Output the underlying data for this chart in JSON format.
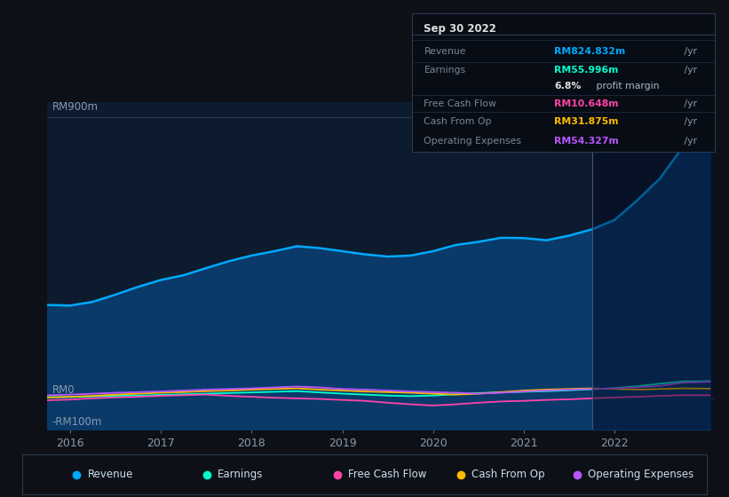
{
  "bg_color": "#0d1117",
  "plot_bg_color": "#0d1b2e",
  "ylim": [
    -100,
    950
  ],
  "xlim": [
    2015.75,
    2023.1
  ],
  "ytick_labels": [
    "RM900m",
    "RM0",
    "-RM100m"
  ],
  "ytick_vals": [
    900,
    0,
    -100
  ],
  "xtick_vals": [
    2016,
    2017,
    2018,
    2019,
    2020,
    2021,
    2022
  ],
  "highlight_x_start": 2021.75,
  "tooltip_date": "Sep 30 2022",
  "tooltip_rows": [
    {
      "label": "Revenue",
      "value": "RM824.832m",
      "suffix": " /yr",
      "color": "#00aaff",
      "bold": true
    },
    {
      "label": "Earnings",
      "value": "RM55.996m",
      "suffix": " /yr",
      "color": "#00ffcc",
      "bold": true
    },
    {
      "label": "",
      "value": "6.8%",
      "suffix": " profit margin",
      "color": "#dddddd",
      "bold": true
    },
    {
      "label": "Free Cash Flow",
      "value": "RM10.648m",
      "suffix": " /yr",
      "color": "#ff44aa",
      "bold": true
    },
    {
      "label": "Cash From Op",
      "value": "RM31.875m",
      "suffix": " /yr",
      "color": "#ffbb00",
      "bold": true
    },
    {
      "label": "Operating Expenses",
      "value": "RM54.327m",
      "suffix": " /yr",
      "color": "#bb55ff",
      "bold": true
    }
  ],
  "legend_items": [
    {
      "label": "Revenue",
      "color": "#00aaff"
    },
    {
      "label": "Earnings",
      "color": "#00ffcc"
    },
    {
      "label": "Free Cash Flow",
      "color": "#ff44aa"
    },
    {
      "label": "Cash From Op",
      "color": "#ffbb00"
    },
    {
      "label": "Operating Expenses",
      "color": "#bb55ff"
    }
  ],
  "revenue_x": [
    2015.75,
    2016.0,
    2016.25,
    2016.5,
    2016.75,
    2017.0,
    2017.25,
    2017.5,
    2017.75,
    2018.0,
    2018.25,
    2018.5,
    2018.75,
    2019.0,
    2019.25,
    2019.5,
    2019.75,
    2020.0,
    2020.25,
    2020.5,
    2020.75,
    2021.0,
    2021.25,
    2021.5,
    2021.75,
    2022.0,
    2022.25,
    2022.5,
    2022.75,
    2023.05
  ],
  "revenue_y": [
    300,
    298,
    310,
    333,
    358,
    380,
    395,
    418,
    440,
    458,
    472,
    488,
    482,
    472,
    462,
    455,
    458,
    472,
    492,
    502,
    515,
    514,
    507,
    522,
    542,
    572,
    635,
    705,
    805,
    830
  ],
  "earnings_x": [
    2015.75,
    2016.0,
    2016.25,
    2016.5,
    2016.75,
    2017.0,
    2017.25,
    2017.5,
    2017.75,
    2018.0,
    2018.25,
    2018.5,
    2018.75,
    2019.0,
    2019.25,
    2019.5,
    2019.75,
    2020.0,
    2020.25,
    2020.5,
    2020.75,
    2021.0,
    2021.25,
    2021.5,
    2021.75,
    2022.0,
    2022.25,
    2022.5,
    2022.75,
    2023.05
  ],
  "earnings_y": [
    5,
    5,
    7,
    9,
    10,
    12,
    14,
    16,
    18,
    20,
    22,
    24,
    20,
    16,
    13,
    10,
    8,
    10,
    14,
    18,
    20,
    22,
    24,
    27,
    30,
    34,
    40,
    48,
    55,
    56
  ],
  "fcf_x": [
    2015.75,
    2016.0,
    2016.25,
    2016.5,
    2016.75,
    2017.0,
    2017.25,
    2017.5,
    2017.75,
    2018.0,
    2018.25,
    2018.5,
    2018.75,
    2019.0,
    2019.25,
    2019.5,
    2019.75,
    2020.0,
    2020.25,
    2020.5,
    2020.75,
    2021.0,
    2021.25,
    2021.5,
    2021.75,
    2022.0,
    2022.25,
    2022.5,
    2022.75,
    2023.05
  ],
  "fcf_y": [
    -5,
    -3,
    1,
    4,
    6,
    9,
    11,
    13,
    9,
    6,
    3,
    1,
    -1,
    -4,
    -7,
    -13,
    -18,
    -22,
    -18,
    -13,
    -9,
    -7,
    -4,
    -2,
    1,
    4,
    6,
    9,
    11,
    11
  ],
  "cfo_x": [
    2015.75,
    2016.0,
    2016.25,
    2016.5,
    2016.75,
    2017.0,
    2017.25,
    2017.5,
    2017.75,
    2018.0,
    2018.25,
    2018.5,
    2018.75,
    2019.0,
    2019.25,
    2019.5,
    2019.75,
    2020.0,
    2020.25,
    2020.5,
    2020.75,
    2021.0,
    2021.25,
    2021.5,
    2021.75,
    2022.0,
    2022.25,
    2022.5,
    2022.75,
    2023.05
  ],
  "cfo_y": [
    4,
    6,
    9,
    13,
    16,
    19,
    21,
    24,
    26,
    29,
    31,
    33,
    29,
    26,
    23,
    21,
    19,
    16,
    13,
    16,
    21,
    26,
    29,
    31,
    33,
    31,
    29,
    31,
    33,
    32
  ],
  "opex_x": [
    2015.75,
    2016.0,
    2016.25,
    2016.5,
    2016.75,
    2017.0,
    2017.25,
    2017.5,
    2017.75,
    2018.0,
    2018.25,
    2018.5,
    2018.75,
    2019.0,
    2019.25,
    2019.5,
    2019.75,
    2020.0,
    2020.25,
    2020.5,
    2020.75,
    2021.0,
    2021.25,
    2021.5,
    2021.75,
    2022.0,
    2022.25,
    2022.5,
    2022.75,
    2023.05
  ],
  "opex_y": [
    11,
    13,
    16,
    19,
    21,
    23,
    26,
    29,
    31,
    33,
    36,
    39,
    36,
    31,
    29,
    26,
    23,
    21,
    19,
    16,
    19,
    23,
    26,
    29,
    31,
    33,
    36,
    41,
    51,
    54
  ]
}
